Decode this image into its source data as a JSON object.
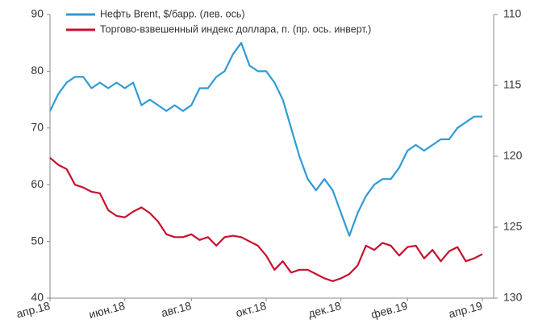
{
  "chart_data": {
    "type": "line",
    "categories": [
      "апр.18",
      null,
      null,
      null,
      null,
      null,
      null,
      null,
      null,
      "июн.18",
      null,
      null,
      null,
      null,
      null,
      null,
      null,
      "авг.18",
      null,
      null,
      null,
      null,
      null,
      null,
      null,
      null,
      "окт.18",
      null,
      null,
      null,
      null,
      null,
      null,
      null,
      null,
      "дек.18",
      null,
      null,
      null,
      null,
      null,
      null,
      null,
      "фев.19",
      null,
      null,
      null,
      null,
      null,
      null,
      null,
      null,
      "апр.19"
    ],
    "series": [
      {
        "name": "Нефть Brent, $/барр. (лев. ось)",
        "color": "#2e9bd6",
        "axis": "y",
        "values": [
          73,
          76,
          78,
          79,
          79,
          77,
          78,
          77,
          78,
          77,
          78,
          74,
          75,
          74,
          73,
          74,
          73,
          74,
          77,
          77,
          79,
          80,
          83,
          85,
          81,
          80,
          80,
          78,
          75,
          70,
          65,
          61,
          59,
          61,
          59,
          55,
          51,
          55,
          58,
          60,
          61,
          61,
          63,
          66,
          67,
          66,
          67,
          68,
          68,
          70,
          71,
          72,
          72
        ]
      },
      {
        "name": "Торгово-взвешенный индекс доллара, п. (пр. ось. инверт.)",
        "color": "#c8102e",
        "axis": "y2",
        "values": [
          120.1,
          120.6,
          120.9,
          122.0,
          122.2,
          122.5,
          122.6,
          123.8,
          124.2,
          124.3,
          123.9,
          123.6,
          124.0,
          124.6,
          125.5,
          125.7,
          125.7,
          125.5,
          125.9,
          125.7,
          126.3,
          125.7,
          125.6,
          125.7,
          126.0,
          126.3,
          127.0,
          128.0,
          127.4,
          128.2,
          128.0,
          128.0,
          128.3,
          128.6,
          128.8,
          128.6,
          128.3,
          127.7,
          126.3,
          126.6,
          126.1,
          126.3,
          127.0,
          126.4,
          126.3,
          127.2,
          126.6,
          127.4,
          126.7,
          126.4,
          127.4,
          127.2,
          126.9
        ]
      }
    ],
    "ylim": [
      40,
      90
    ],
    "yticks": [
      40,
      50,
      60,
      70,
      80,
      90
    ],
    "y2lim": [
      110,
      130
    ],
    "y2ticks": [
      110,
      115,
      120,
      125,
      130
    ],
    "y2_inverted": true
  }
}
